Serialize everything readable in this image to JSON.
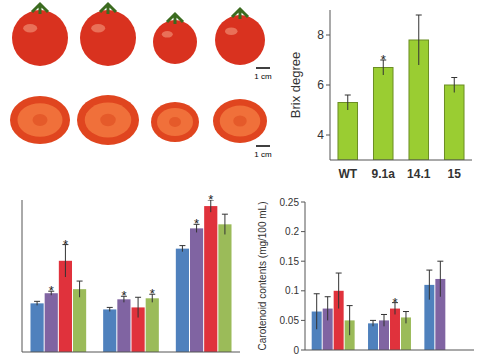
{
  "photos": {
    "scale_labels": [
      "1 cm",
      "1 cm"
    ]
  },
  "chart_data": [
    {
      "type": "bar",
      "categories": [
        "WT",
        "9.1a",
        "14.1",
        "15"
      ],
      "values": [
        5.3,
        6.7,
        7.8,
        6.0
      ],
      "errors": [
        0.3,
        0.3,
        1.0,
        0.3
      ],
      "color": "#9acd32",
      "y_label": "Brix degree",
      "ylim": [
        3,
        9
      ],
      "yticks": [
        4,
        6,
        8
      ],
      "annotations": [
        {
          "index": 1,
          "text": "*"
        }
      ]
    },
    {
      "type": "bar",
      "categories": [
        null,
        null,
        null
      ],
      "series": [
        {
          "color": "#4f81bd",
          "values": [
            48,
            42,
            102
          ],
          "errors": [
            2,
            2,
            3
          ]
        },
        {
          "color": "#8064a2",
          "values": [
            58,
            52,
            122
          ],
          "errors": [
            2,
            3,
            4
          ]
        },
        {
          "color": "#e0323c",
          "values": [
            90,
            44,
            144
          ],
          "errors": [
            16,
            10,
            6
          ]
        },
        {
          "color": "#9bbb59",
          "values": [
            62,
            53,
            126
          ],
          "errors": [
            8,
            4,
            10
          ]
        }
      ],
      "ylim": [
        0,
        150
      ],
      "tick_labels": false,
      "annotations": [
        {
          "series": 1,
          "index": 0,
          "text": "*"
        },
        {
          "series": 2,
          "index": 0,
          "text": "*"
        },
        {
          "series": 1,
          "index": 1,
          "text": "*"
        },
        {
          "series": 3,
          "index": 1,
          "text": "*"
        },
        {
          "series": 1,
          "index": 2,
          "text": "*"
        },
        {
          "series": 2,
          "index": 2,
          "text": "*"
        }
      ]
    },
    {
      "type": "bar",
      "categories": [
        null,
        null,
        null
      ],
      "series": [
        {
          "color": "#4f81bd",
          "values": [
            0.065,
            0.045,
            0.11
          ],
          "errors": [
            0.03,
            0.005,
            0.025
          ]
        },
        {
          "color": "#8064a2",
          "values": [
            0.07,
            0.05,
            0.12
          ],
          "errors": [
            0.02,
            0.01,
            0.03
          ]
        },
        {
          "color": "#e0323c",
          "values": [
            0.1,
            0.07,
            null
          ],
          "errors": [
            0.03,
            0.01,
            null
          ]
        },
        {
          "color": "#9bbb59",
          "values": [
            0.05,
            0.055,
            null
          ],
          "errors": [
            0.025,
            0.01,
            null
          ]
        }
      ],
      "y_label": "Carotenoid contents (mg/100 mL)",
      "ylim": [
        0,
        0.25
      ],
      "yticks": [
        0,
        0.05,
        0.1,
        0.15,
        0.2,
        0.25
      ],
      "annotations": [
        {
          "series": 2,
          "index": 1,
          "text": "*"
        }
      ]
    }
  ]
}
